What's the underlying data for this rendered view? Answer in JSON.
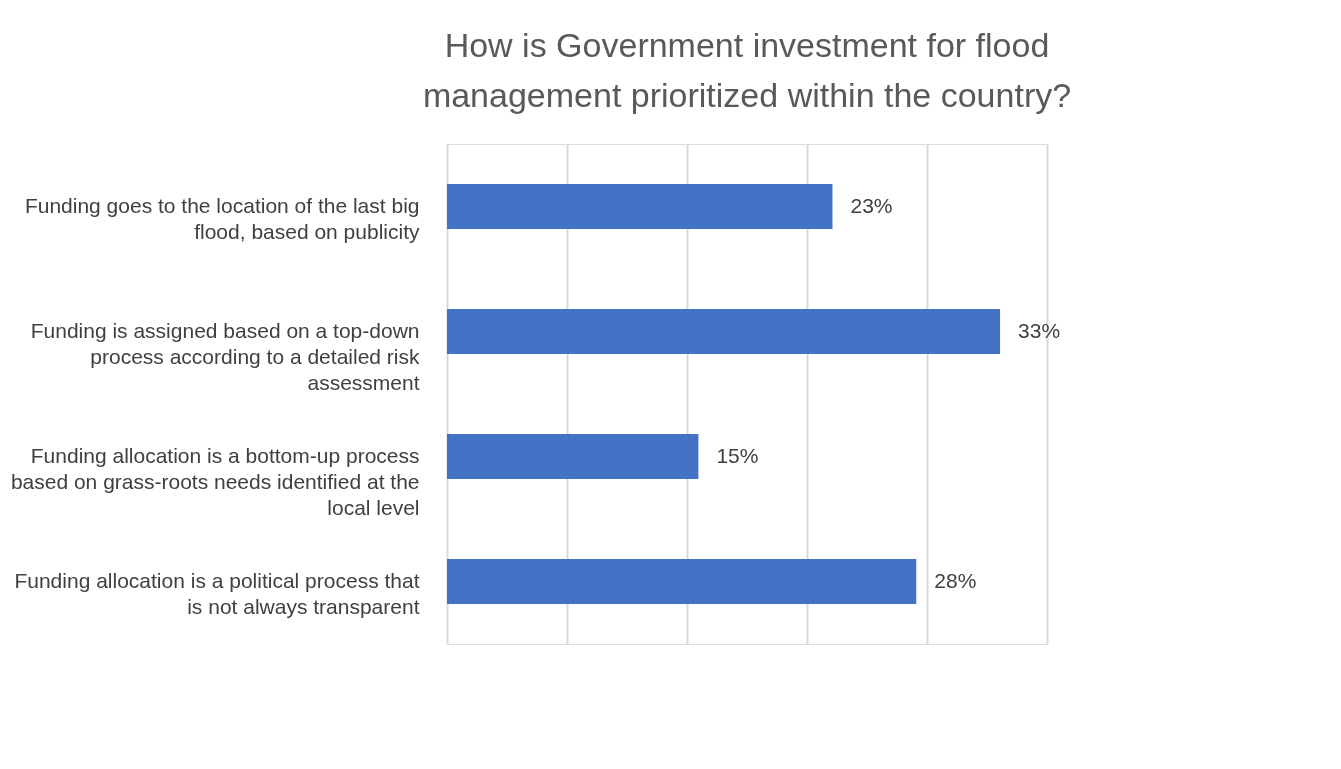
{
  "chart_data": {
    "type": "bar",
    "orientation": "horizontal",
    "title": "How is Government investment for flood management prioritized within the country?",
    "categories": [
      "Funding goes to the location of the last big flood, based on publicity",
      "Funding is assigned based on a top-down process according to a detailed risk assessment",
      "Funding allocation is a bottom-up process based on grass-roots needs identified at the local level",
      "Funding allocation is a political process that is not always transparent"
    ],
    "values": [
      23,
      33,
      15,
      28
    ],
    "color": "#4472c4",
    "data_labels": true,
    "value_labels": [
      "23%",
      "33%",
      "15%",
      "28%"
    ],
    "xlim": [
      0,
      35.8
    ],
    "xticks": [
      {
        "value": 0,
        "label": null
      },
      {
        "value": 7.16,
        "label": null
      },
      {
        "value": 14.32,
        "label": null
      },
      {
        "value": 21.48,
        "label": null
      },
      {
        "value": 28.64,
        "label": null
      },
      {
        "value": 35.8,
        "label": null
      }
    ],
    "grid": "x",
    "tick_labels": "y"
  }
}
